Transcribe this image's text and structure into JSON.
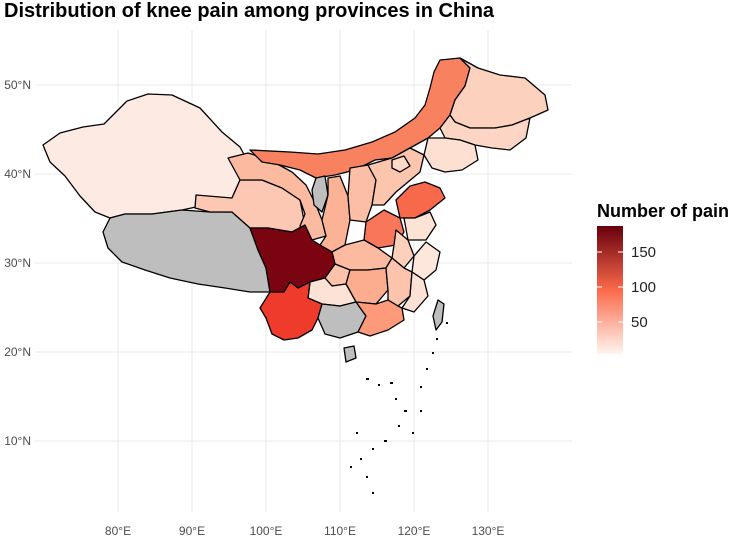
{
  "title": "Distribution of knee pain among provinces in China",
  "map": {
    "lon_ticks": [
      "80°E",
      "90°E",
      "100°E",
      "110°E",
      "120°E",
      "130°E"
    ],
    "lat_ticks": [
      "10°N",
      "20°N",
      "30°N",
      "40°N",
      "50°N"
    ],
    "no_data_color": "#bebebe",
    "border_color": "#000000",
    "grid": true
  },
  "legend": {
    "title": "Number of pain",
    "ticks": [
      "50",
      "100",
      "150"
    ],
    "low_color": "#fff5f0",
    "mid_color": "#fb6a4a",
    "high_color": "#67000d",
    "placement": "right"
  }
}
